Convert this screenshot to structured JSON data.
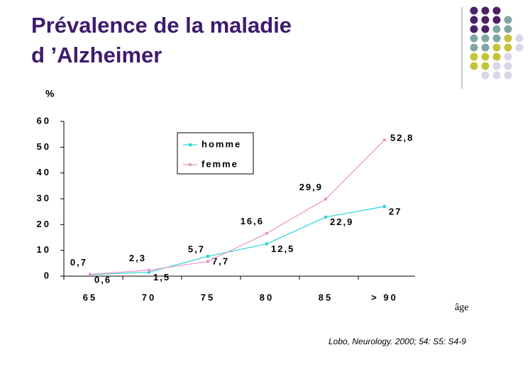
{
  "title": "Prévalence de la maladie",
  "title2": "d ’Alzheimer",
  "citation": "Lobo, Neurology. 2000; 54: S5: S4-9",
  "chart_data": {
    "type": "line",
    "ylabel": "%",
    "xlabel": "âge",
    "categories": [
      "65",
      "70",
      "75",
      "80",
      "85",
      "> 90"
    ],
    "ylim": [
      0,
      60
    ],
    "yticks": [
      0,
      10,
      20,
      30,
      40,
      50,
      60
    ],
    "legend": "upper left",
    "series": [
      {
        "name": "homme",
        "color": "#2ad4d4",
        "values": [
          0.6,
          1.5,
          7.7,
          12.5,
          22.9,
          27
        ],
        "value_labels": [
          "0,6",
          "1,5",
          "7,7",
          "12,5",
          "22,9",
          "27"
        ]
      },
      {
        "name": "femme",
        "color": "#e596c8",
        "values": [
          0.7,
          2.3,
          5.7,
          16.6,
          29.9,
          52.8
        ],
        "value_labels": [
          "0,7",
          "2,3",
          "5,7",
          "16,6",
          "29,9",
          "52,8"
        ]
      }
    ]
  }
}
